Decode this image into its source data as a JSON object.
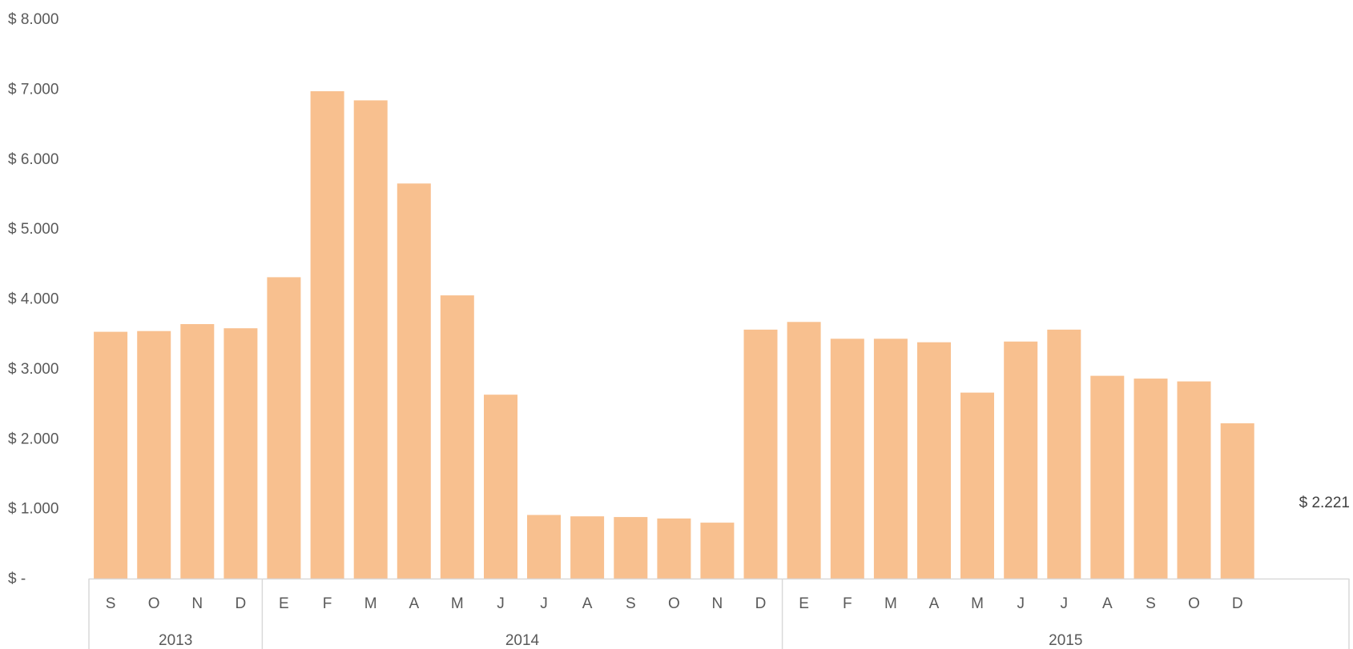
{
  "chart_data": {
    "type": "bar",
    "categories": [
      "S",
      "O",
      "N",
      "D",
      "E",
      "F",
      "M",
      "A",
      "M",
      "J",
      "J",
      "A",
      "S",
      "O",
      "N",
      "D",
      "E",
      "F",
      "M",
      "A",
      "M",
      "J",
      "J",
      "A",
      "S",
      "O",
      "D"
    ],
    "groups": [
      {
        "label": "2013",
        "count": 4
      },
      {
        "label": "2014",
        "count": 12
      },
      {
        "label": "2015",
        "count": 11
      }
    ],
    "series": [
      {
        "values": [
          3530,
          3540,
          3640,
          3580,
          4310,
          6970,
          6840,
          5650,
          4050,
          2630,
          910,
          890,
          880,
          860,
          800,
          3560,
          3670,
          3430,
          3430,
          3380,
          2660,
          3390,
          3560,
          2900,
          2860,
          2820,
          2221
        ],
        "color": "#F8C08F"
      }
    ],
    "yticks": [
      "$ -",
      "$ 1.000",
      "$ 2.000",
      "$ 3.000",
      "$ 4.000",
      "$ 5.000",
      "$ 6.000",
      "$ 7.000",
      "$ 8.000"
    ],
    "ylim": [
      0,
      8000
    ],
    "annotation": "$ 2.221",
    "grid": false,
    "title": "",
    "xlabel": "",
    "ylabel": ""
  }
}
